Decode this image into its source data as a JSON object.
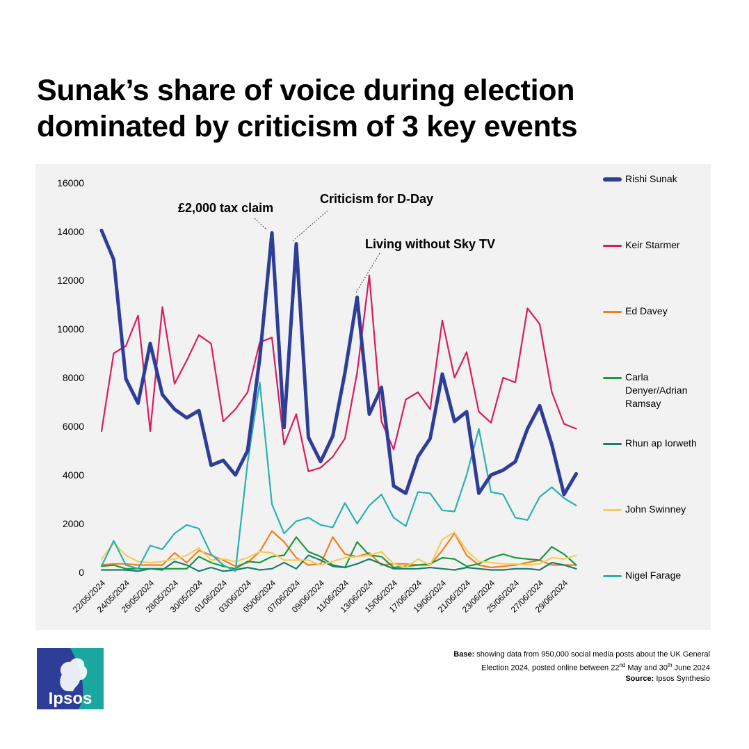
{
  "title": "Sunak’s share of voice during election dominated by criticism of 3 key events",
  "colors": {
    "panel": "#f2f2f2",
    "Rishi Sunak": "#2e3d97",
    "Keir Starmer": "#d81b60",
    "Ed Davey": "#f07f22",
    "Carla Denyer/Adrian Ramsay": "#1a9a3c",
    "Rhun ap Iorweth": "#1a7e6e",
    "John Swinney": "#f6cd5b",
    "Nigel Farage": "#2bb0b0"
  },
  "chart_data": {
    "type": "line",
    "title": "Sunak’s share of voice during election dominated by criticism of 3 key events",
    "xlabel": "",
    "ylabel": "",
    "ylim": [
      0,
      16000
    ],
    "yticks": [
      "0",
      "2000",
      "4000",
      "6000",
      "8000",
      "10000",
      "12000",
      "14000",
      "16000"
    ],
    "categories": [
      "22/05/2024",
      "23/05/2024",
      "24/05/2024",
      "25/05/2024",
      "26/05/2024",
      "27/05/2024",
      "28/05/2024",
      "29/05/2024",
      "30/05/2024",
      "31/05/2024",
      "01/06/2024",
      "02/06/2024",
      "03/06/2024",
      "04/06/2024",
      "05/06/2024",
      "06/06/2024",
      "07/06/2024",
      "08/06/2024",
      "09/06/2024",
      "10/06/2024",
      "11/06/2024",
      "12/06/2024",
      "13/06/2024",
      "14/06/2024",
      "15/06/2024",
      "16/06/2024",
      "17/06/2024",
      "18/06/2024",
      "19/06/2024",
      "20/06/2024",
      "21/06/2024",
      "22/06/2024",
      "23/06/2024",
      "24/06/2024",
      "25/06/2024",
      "26/06/2024",
      "27/06/2024",
      "28/06/2024",
      "29/06/2024",
      "30/06/2024"
    ],
    "x_tick_labels": [
      "22/05/2024",
      "24/05/2024",
      "26/05/2024",
      "28/05/2024",
      "30/05/2024",
      "01/06/2024",
      "03/06/2024",
      "05/06/2024",
      "07/06/2024",
      "09/06/2024",
      "11/06/2024",
      "13/06/2024",
      "15/06/2024",
      "17/06/2024",
      "19/06/2024",
      "21/06/2024",
      "23/06/2024",
      "25/06/2024",
      "27/06/2024",
      "29/06/2024"
    ],
    "series": [
      {
        "name": "Rishi Sunak",
        "values": [
          14050,
          12850,
          7950,
          6950,
          9400,
          7300,
          6700,
          6350,
          6650,
          4400,
          4600,
          4000,
          5000,
          8800,
          13950,
          5950,
          13500,
          5550,
          4550,
          5600,
          8200,
          11300,
          6500,
          7600,
          3550,
          3250,
          4750,
          5500,
          8150,
          6200,
          6600,
          3250,
          4000,
          4200,
          4550,
          5900,
          6850,
          5250,
          3200,
          4050
        ]
      },
      {
        "name": "Keir Starmer",
        "values": [
          5800,
          9000,
          9300,
          10550,
          5800,
          10900,
          7750,
          8700,
          9750,
          9400,
          6200,
          6700,
          7400,
          9450,
          9650,
          5250,
          6500,
          4150,
          4300,
          4750,
          5500,
          8200,
          12200,
          6200,
          5050,
          7100,
          7400,
          6700,
          10350,
          8000,
          9050,
          6600,
          6150,
          8000,
          7800,
          10850,
          10200,
          7400,
          6100,
          5900
        ]
      },
      {
        "name": "Ed Davey",
        "values": [
          300,
          350,
          350,
          300,
          300,
          300,
          800,
          400,
          900,
          700,
          500,
          250,
          400,
          850,
          1700,
          1250,
          600,
          300,
          350,
          1450,
          750,
          650,
          800,
          300,
          350,
          350,
          300,
          300,
          900,
          1600,
          700,
          300,
          200,
          250,
          300,
          400,
          500,
          300,
          300,
          300
        ]
      },
      {
        "name": "Carla Denyer/Adrian Ramsay",
        "values": [
          250,
          300,
          150,
          150,
          150,
          150,
          150,
          150,
          650,
          400,
          250,
          150,
          450,
          400,
          650,
          700,
          1450,
          850,
          650,
          300,
          200,
          1250,
          700,
          650,
          200,
          250,
          300,
          350,
          600,
          550,
          250,
          350,
          600,
          750,
          600,
          550,
          500,
          1050,
          750,
          300
        ]
      },
      {
        "name": "Rhun ap Iorweth",
        "values": [
          100,
          100,
          100,
          50,
          150,
          100,
          450,
          300,
          50,
          200,
          50,
          100,
          200,
          100,
          150,
          400,
          150,
          700,
          500,
          250,
          200,
          350,
          550,
          350,
          150,
          150,
          150,
          200,
          150,
          100,
          200,
          150,
          100,
          100,
          150,
          150,
          100,
          400,
          300,
          150
        ]
      },
      {
        "name": "John Swinney",
        "values": [
          550,
          1200,
          700,
          450,
          400,
          450,
          550,
          700,
          1000,
          500,
          550,
          450,
          600,
          850,
          800,
          500,
          500,
          500,
          300,
          450,
          600,
          650,
          700,
          850,
          350,
          200,
          550,
          300,
          1350,
          1650,
          900,
          450,
          400,
          350,
          350,
          300,
          350,
          600,
          550,
          700
        ]
      },
      {
        "name": "Nigel Farage",
        "values": [
          250,
          1300,
          300,
          150,
          1100,
          950,
          1600,
          1950,
          1800,
          750,
          300,
          50,
          4500,
          7800,
          2800,
          1600,
          2100,
          2250,
          1950,
          1850,
          2850,
          2000,
          2750,
          3200,
          2250,
          1900,
          3300,
          3250,
          2550,
          2500,
          4000,
          5900,
          3300,
          3200,
          2250,
          2150,
          3100,
          3500,
          3050,
          2750
        ]
      }
    ],
    "annotations": [
      {
        "text": "£2,000 tax claim",
        "x": "05/06/2024",
        "y": 13950
      },
      {
        "text": "Criticism for D-Day",
        "x": "07/06/2024",
        "y": 13500
      },
      {
        "text": "Living without Sky TV",
        "x": "12/06/2024",
        "y": 11300
      }
    ],
    "legend": [
      "Rishi Sunak",
      "Keir Starmer",
      "Ed Davey",
      "Carla Denyer/Adrian Ramsay",
      "Rhun ap Iorweth",
      "John Swinney",
      "Nigel Farage"
    ],
    "legend_position": "right",
    "grid": false
  },
  "footer": {
    "base_label": "Base:",
    "base_text": "showing data from 950,000 social media posts about the UK General",
    "base_line2_a": "Election 2024, posted online between 22",
    "base_sup1": "nd",
    "base_line2_b": " May and 30",
    "base_sup2": "th",
    "base_line2_c": " June 2024",
    "source_label": "Source:",
    "source_text": "Ipsos Synthesio"
  },
  "logo": {
    "text": "Ipsos"
  }
}
